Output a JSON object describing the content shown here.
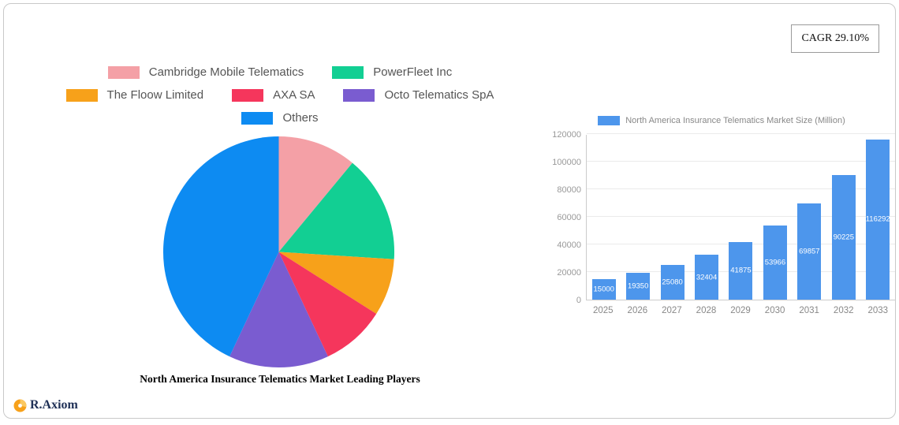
{
  "cagr": {
    "label": "CAGR 29.10%"
  },
  "logo": {
    "text": "R.Axiom"
  },
  "chart_data": [
    {
      "type": "pie",
      "title": "North America Insurance Telematics Market Leading Players",
      "labels": [
        "Cambridge Mobile Telematics",
        "PowerFleet Inc",
        "The Floow Limited",
        "AXA SA",
        "Octo Telematics SpA",
        "Others"
      ],
      "values": [
        11,
        15,
        8,
        9,
        14,
        43
      ],
      "unit": "percent-share-estimated",
      "colors": [
        "#f4a0a6",
        "#12cf93",
        "#f7a11a",
        "#f5365c",
        "#7a5cd0",
        "#0d8bf2"
      ],
      "start_angle": "top",
      "direction": "clockwise",
      "legend_position": "top"
    },
    {
      "type": "bar",
      "legend": "North America Insurance Telematics Market Size (Million)",
      "categories": [
        "2025",
        "2026",
        "2027",
        "2028",
        "2029",
        "2030",
        "2031",
        "2032",
        "2033"
      ],
      "values": [
        15000,
        19350,
        25080,
        32404,
        41875,
        53966,
        69857,
        90225,
        116292
      ],
      "ylim": [
        0,
        120000
      ],
      "ytick_step": 20000,
      "bar_color": "#4d96ec",
      "grid": true,
      "legend_position": "top",
      "value_labels": "inside-white"
    }
  ]
}
